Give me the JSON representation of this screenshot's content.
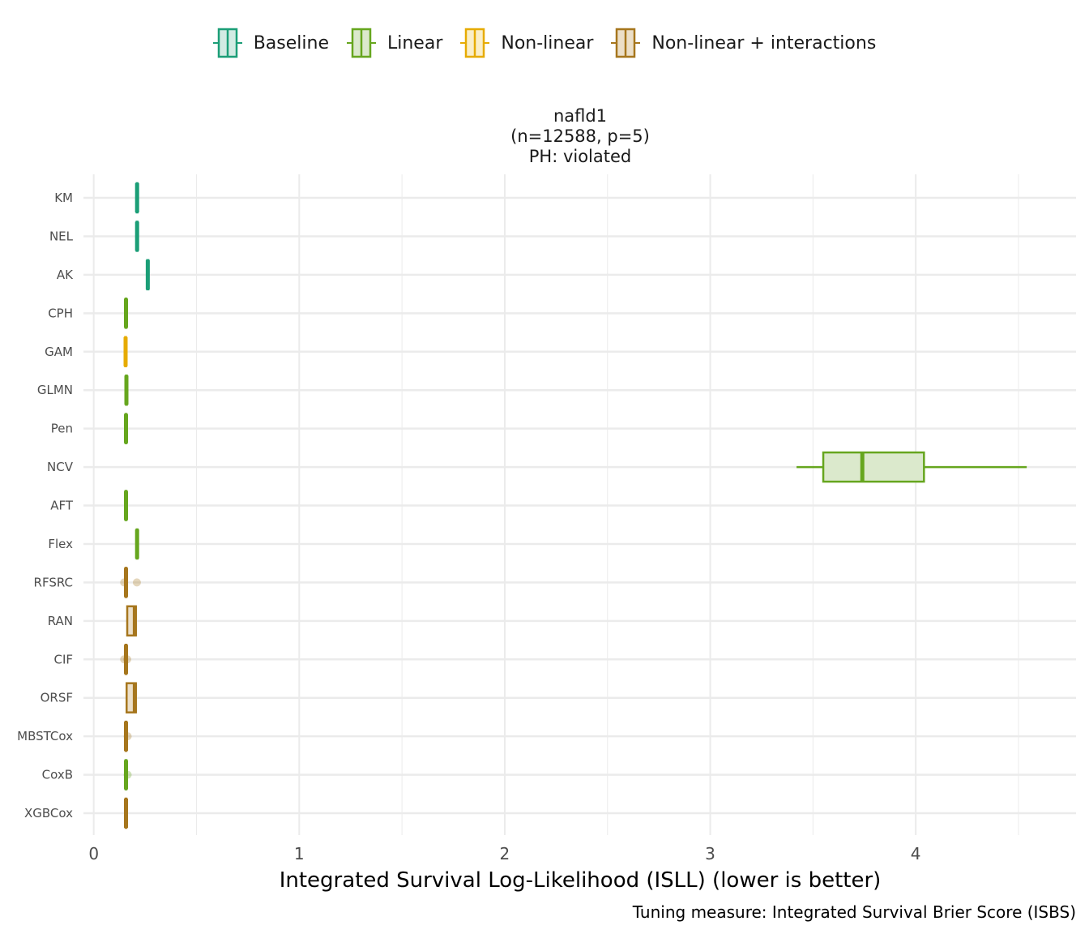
{
  "legend": [
    {
      "name": "Baseline",
      "color": "#1b9e77",
      "fill": "#d2ebe3"
    },
    {
      "name": "Linear",
      "color": "#66a61e",
      "fill": "#dbe9cc"
    },
    {
      "name": "Non-linear",
      "color": "#e6ab02",
      "fill": "#faeec8"
    },
    {
      "name": "Non-linear + interactions",
      "color": "#a6761d",
      "fill": "#ecdfc8"
    }
  ],
  "chart_data": {
    "type": "boxplot",
    "orientation": "horizontal",
    "facet_title": [
      "nafld1",
      "(n=12588, p=5)",
      "PH: violated"
    ],
    "xlabel": "Integrated Survival Log-Likelihood (ISLL) (lower is better)",
    "caption": "Tuning measure: Integrated Survival Brier Score (ISBS)",
    "xlim": [
      -0.05,
      4.78
    ],
    "xticks": [
      0,
      1,
      2,
      3,
      4
    ],
    "grid": true,
    "legend_position": "top",
    "categories": [
      "KM",
      "NEL",
      "AK",
      "CPH",
      "GAM",
      "GLMN",
      "Pen",
      "NCV",
      "AFT",
      "Flex",
      "RFSRC",
      "RAN",
      "CIF",
      "ORSF",
      "MBSTCox",
      "CoxB",
      "XGBCox"
    ],
    "boxes": [
      {
        "label": "KM",
        "group": "Baseline",
        "min": 0.209,
        "q1": 0.209,
        "median": 0.211,
        "q3": 0.213,
        "max": 0.213,
        "outliers": []
      },
      {
        "label": "NEL",
        "group": "Baseline",
        "min": 0.209,
        "q1": 0.209,
        "median": 0.211,
        "q3": 0.213,
        "max": 0.213,
        "outliers": []
      },
      {
        "label": "AK",
        "group": "Baseline",
        "min": 0.255,
        "q1": 0.26,
        "median": 0.263,
        "q3": 0.266,
        "max": 0.27,
        "outliers": []
      },
      {
        "label": "CPH",
        "group": "Linear",
        "min": 0.154,
        "q1": 0.155,
        "median": 0.157,
        "q3": 0.159,
        "max": 0.16,
        "outliers": []
      },
      {
        "label": "GAM",
        "group": "Non-linear",
        "min": 0.152,
        "q1": 0.153,
        "median": 0.155,
        "q3": 0.157,
        "max": 0.158,
        "outliers": []
      },
      {
        "label": "GLMN",
        "group": "Linear",
        "min": 0.156,
        "q1": 0.157,
        "median": 0.159,
        "q3": 0.161,
        "max": 0.162,
        "outliers": []
      },
      {
        "label": "Pen",
        "group": "Linear",
        "min": 0.154,
        "q1": 0.155,
        "median": 0.157,
        "q3": 0.159,
        "max": 0.16,
        "outliers": []
      },
      {
        "label": "NCV",
        "group": "Linear",
        "min": 3.42,
        "q1": 3.55,
        "median": 3.74,
        "q3": 4.04,
        "max": 4.54,
        "outliers": []
      },
      {
        "label": "AFT",
        "group": "Linear",
        "min": 0.154,
        "q1": 0.155,
        "median": 0.157,
        "q3": 0.159,
        "max": 0.16,
        "outliers": []
      },
      {
        "label": "Flex",
        "group": "Linear",
        "min": 0.208,
        "q1": 0.209,
        "median": 0.211,
        "q3": 0.213,
        "max": 0.214,
        "outliers": []
      },
      {
        "label": "RFSRC",
        "group": "Non-linear + interactions",
        "min": 0.154,
        "q1": 0.155,
        "median": 0.157,
        "q3": 0.159,
        "max": 0.16,
        "outliers": [
          0.148,
          0.21
        ]
      },
      {
        "label": "RAN",
        "group": "Non-linear + interactions",
        "min": 0.16,
        "q1": 0.163,
        "median": 0.2,
        "q3": 0.205,
        "max": 0.207,
        "outliers": []
      },
      {
        "label": "CIF",
        "group": "Non-linear + interactions",
        "min": 0.154,
        "q1": 0.155,
        "median": 0.157,
        "q3": 0.159,
        "max": 0.16,
        "outliers": [
          0.148,
          0.163
        ]
      },
      {
        "label": "ORSF",
        "group": "Non-linear + interactions",
        "min": 0.155,
        "q1": 0.16,
        "median": 0.2,
        "q3": 0.205,
        "max": 0.207,
        "outliers": []
      },
      {
        "label": "MBSTCox",
        "group": "Non-linear + interactions",
        "min": 0.154,
        "q1": 0.155,
        "median": 0.157,
        "q3": 0.159,
        "max": 0.16,
        "outliers": [
          0.165
        ]
      },
      {
        "label": "CoxB",
        "group": "Linear",
        "min": 0.154,
        "q1": 0.155,
        "median": 0.157,
        "q3": 0.159,
        "max": 0.16,
        "outliers": [
          0.165
        ]
      },
      {
        "label": "XGBCox",
        "group": "Non-linear + interactions",
        "min": 0.154,
        "q1": 0.155,
        "median": 0.157,
        "q3": 0.159,
        "max": 0.16,
        "outliers": []
      }
    ]
  }
}
